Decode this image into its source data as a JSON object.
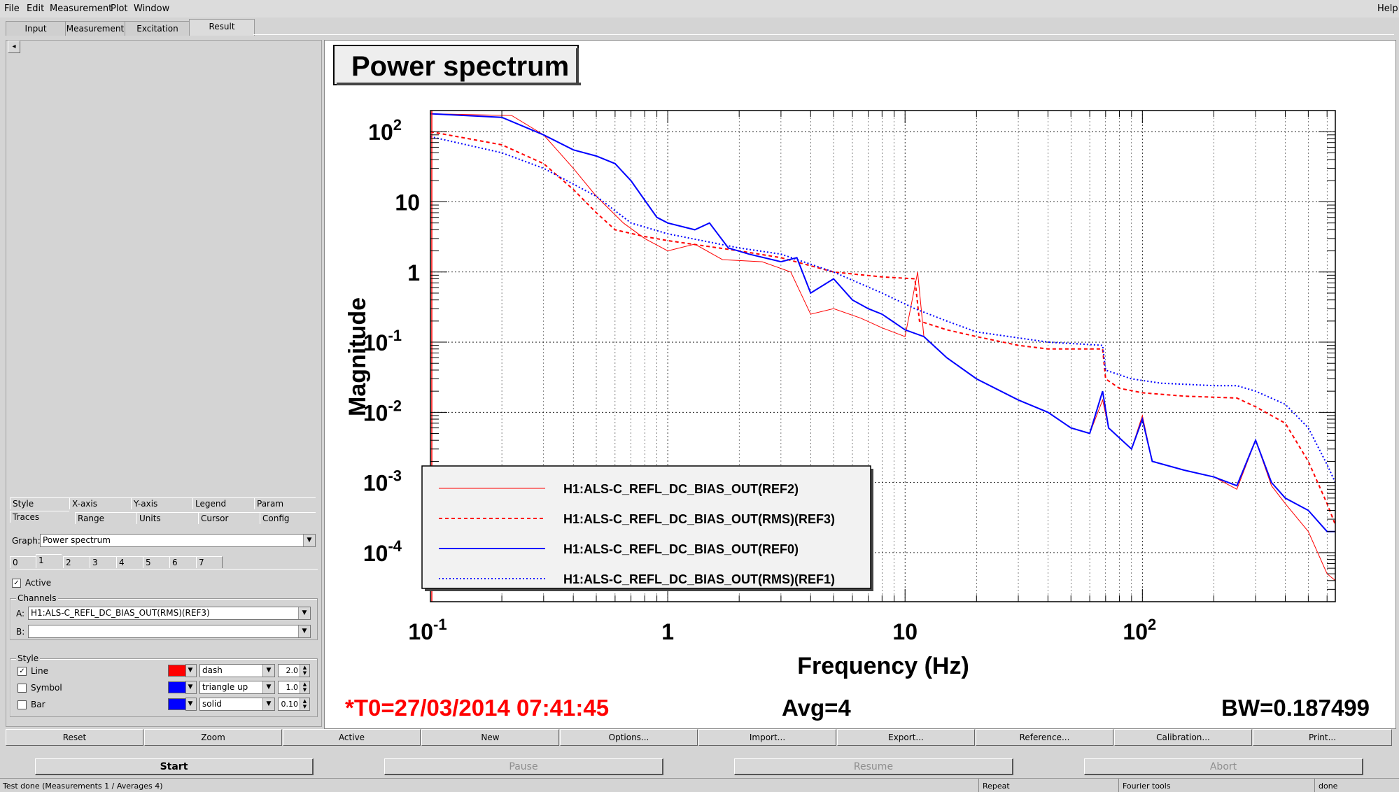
{
  "menu": {
    "file": "File",
    "edit": "Edit",
    "measurement": "Measurement",
    "plot": "Plot",
    "window": "Window",
    "help": "Help"
  },
  "main_tabs": [
    "Input",
    "Measurement",
    "Excitation",
    "Result"
  ],
  "left": {
    "collapse_glyph": "◂",
    "option_tabs_row1": [
      "Style",
      "X-axis",
      "Y-axis",
      "Legend",
      "Param"
    ],
    "option_tabs_row2": [
      "Traces",
      "Range",
      "Units",
      "Cursor",
      "Config"
    ],
    "graph_label": "Graph:",
    "graph_value": "Power spectrum",
    "trace_tabs": [
      "0",
      "1",
      "2",
      "3",
      "4",
      "5",
      "6",
      "7"
    ],
    "active_label": "Active",
    "channels_title": "Channels",
    "channel_a_label": "A:",
    "channel_a_value": "H1:ALS-C_REFL_DC_BIAS_OUT(RMS)(REF3)",
    "channel_b_label": "B:",
    "channel_b_value": "",
    "style_title": "Style",
    "line_label": "Line",
    "line_type": "dash",
    "line_width": "2.0",
    "symbol_label": "Symbol",
    "symbol_type": "triangle up",
    "symbol_size": "1.0",
    "bar_label": "Bar",
    "bar_type": "solid",
    "bar_width": "0.10",
    "line_color": "#ff0000",
    "symbol_color": "#0000ff",
    "bar_color": "#0000ff"
  },
  "plot": {
    "title": "Power spectrum",
    "ylabel": "Magnitude",
    "xlabel": "Frequency (Hz)",
    "t0": "*T0=27/03/2014 07:41:45",
    "avg": "Avg=4",
    "bw": "BW=0.187499"
  },
  "chart_data": {
    "type": "line",
    "title": "Power spectrum",
    "xlabel": "Frequency (Hz)",
    "ylabel": "Magnitude",
    "xscale": "log",
    "yscale": "log",
    "xlim": [
      0.1,
      650
    ],
    "ylim": [
      2e-05,
      200
    ],
    "grid": true,
    "legend_position": "bottom-left",
    "x_ticks": [
      {
        "base": "10",
        "exp": "-1"
      },
      {
        "base": "1",
        "exp": ""
      },
      {
        "base": "10",
        "exp": ""
      },
      {
        "base": "10",
        "exp": "2"
      }
    ],
    "y_ticks": [
      {
        "base": "10",
        "exp": "2"
      },
      {
        "base": "10",
        "exp": ""
      },
      {
        "base": "1",
        "exp": ""
      },
      {
        "base": "10",
        "exp": "-1"
      },
      {
        "base": "10",
        "exp": "-2"
      },
      {
        "base": "10",
        "exp": "-3"
      },
      {
        "base": "10",
        "exp": "-4"
      }
    ],
    "series": [
      {
        "name": "H1:ALS-C_REFL_DC_BIAS_OUT(REF2)",
        "color": "#ff0000",
        "style": "solid",
        "width": 1,
        "points": [
          [
            0.1,
            180
          ],
          [
            0.22,
            170
          ],
          [
            0.3,
            90
          ],
          [
            0.4,
            30
          ],
          [
            0.5,
            12
          ],
          [
            0.65,
            5
          ],
          [
            0.8,
            3
          ],
          [
            1.0,
            2.0
          ],
          [
            1.3,
            2.5
          ],
          [
            1.7,
            1.5
          ],
          [
            2.5,
            1.4
          ],
          [
            3.3,
            1.0
          ],
          [
            4.0,
            0.25
          ],
          [
            5.0,
            0.3
          ],
          [
            6.5,
            0.22
          ],
          [
            8,
            0.16
          ],
          [
            10,
            0.12
          ],
          [
            11.3,
            1.0
          ],
          [
            12,
            0.12
          ],
          [
            15,
            0.06
          ],
          [
            20,
            0.03
          ],
          [
            30,
            0.015
          ],
          [
            40,
            0.01
          ],
          [
            50,
            0.006
          ],
          [
            60,
            0.005
          ],
          [
            68,
            0.015
          ],
          [
            72,
            0.006
          ],
          [
            90,
            0.003
          ],
          [
            100,
            0.009
          ],
          [
            110,
            0.002
          ],
          [
            150,
            0.0015
          ],
          [
            200,
            0.0012
          ],
          [
            250,
            0.0008
          ],
          [
            300,
            0.004
          ],
          [
            350,
            0.0009
          ],
          [
            400,
            0.0005
          ],
          [
            500,
            0.0002
          ],
          [
            600,
            5e-05
          ],
          [
            650,
            4e-05
          ]
        ]
      },
      {
        "name": "H1:ALS-C_REFL_DC_BIAS_OUT(RMS)(REF3)",
        "color": "#ff0000",
        "style": "dash",
        "width": 2,
        "points": [
          [
            0.1,
            100
          ],
          [
            0.2,
            65
          ],
          [
            0.3,
            35
          ],
          [
            0.4,
            15
          ],
          [
            0.5,
            7
          ],
          [
            0.6,
            4
          ],
          [
            0.8,
            3.2
          ],
          [
            1,
            2.8
          ],
          [
            2,
            2.0
          ],
          [
            3,
            1.6
          ],
          [
            5,
            1.0
          ],
          [
            8,
            0.85
          ],
          [
            11,
            0.8
          ],
          [
            11.5,
            0.2
          ],
          [
            15,
            0.15
          ],
          [
            20,
            0.12
          ],
          [
            30,
            0.09
          ],
          [
            40,
            0.08
          ],
          [
            68,
            0.08
          ],
          [
            70,
            0.03
          ],
          [
            80,
            0.022
          ],
          [
            100,
            0.019
          ],
          [
            150,
            0.017
          ],
          [
            250,
            0.016
          ],
          [
            300,
            0.012
          ],
          [
            400,
            0.007
          ],
          [
            500,
            0.002
          ],
          [
            600,
            0.0005
          ],
          [
            650,
            0.00025
          ]
        ]
      },
      {
        "name": "H1:ALS-C_REFL_DC_BIAS_OUT(REF0)",
        "color": "#0000ff",
        "style": "solid",
        "width": 2,
        "points": [
          [
            0.1,
            180
          ],
          [
            0.2,
            160
          ],
          [
            0.3,
            90
          ],
          [
            0.4,
            55
          ],
          [
            0.5,
            45
          ],
          [
            0.6,
            35
          ],
          [
            0.7,
            20
          ],
          [
            0.9,
            6
          ],
          [
            1.0,
            5
          ],
          [
            1.3,
            4
          ],
          [
            1.5,
            5
          ],
          [
            1.8,
            2.2
          ],
          [
            2.2,
            1.8
          ],
          [
            3,
            1.4
          ],
          [
            3.5,
            1.6
          ],
          [
            4,
            0.5
          ],
          [
            5,
            0.8
          ],
          [
            6,
            0.4
          ],
          [
            7,
            0.3
          ],
          [
            8,
            0.25
          ],
          [
            10,
            0.15
          ],
          [
            12,
            0.12
          ],
          [
            15,
            0.06
          ],
          [
            20,
            0.03
          ],
          [
            30,
            0.015
          ],
          [
            40,
            0.01
          ],
          [
            50,
            0.006
          ],
          [
            60,
            0.005
          ],
          [
            68,
            0.02
          ],
          [
            72,
            0.006
          ],
          [
            90,
            0.003
          ],
          [
            100,
            0.008
          ],
          [
            110,
            0.002
          ],
          [
            150,
            0.0015
          ],
          [
            200,
            0.0012
          ],
          [
            250,
            0.0009
          ],
          [
            300,
            0.004
          ],
          [
            350,
            0.001
          ],
          [
            400,
            0.0006
          ],
          [
            500,
            0.0004
          ],
          [
            600,
            0.0002
          ],
          [
            650,
            0.0002
          ]
        ]
      },
      {
        "name": "H1:ALS-C_REFL_DC_BIAS_OUT(RMS)(REF1)",
        "color": "#0000ff",
        "style": "dot",
        "width": 2,
        "points": [
          [
            0.1,
            85
          ],
          [
            0.2,
            50
          ],
          [
            0.3,
            30
          ],
          [
            0.5,
            12
          ],
          [
            0.7,
            5
          ],
          [
            1,
            3.5
          ],
          [
            2,
            2.2
          ],
          [
            3,
            1.8
          ],
          [
            5,
            1.0
          ],
          [
            8,
            0.5
          ],
          [
            11,
            0.3
          ],
          [
            15,
            0.2
          ],
          [
            20,
            0.14
          ],
          [
            40,
            0.1
          ],
          [
            68,
            0.09
          ],
          [
            70,
            0.04
          ],
          [
            90,
            0.03
          ],
          [
            120,
            0.026
          ],
          [
            200,
            0.024
          ],
          [
            250,
            0.024
          ],
          [
            300,
            0.02
          ],
          [
            400,
            0.013
          ],
          [
            500,
            0.006
          ],
          [
            600,
            0.0018
          ],
          [
            650,
            0.001
          ]
        ]
      }
    ]
  },
  "buttons_row1": [
    "Reset",
    "Zoom",
    "Active",
    "New",
    "Options...",
    "Import...",
    "Export...",
    "Reference...",
    "Calibration...",
    "Print..."
  ],
  "buttons_row2": [
    {
      "label": "Start",
      "enabled": true
    },
    {
      "label": "Pause",
      "enabled": false
    },
    {
      "label": "Resume",
      "enabled": false
    },
    {
      "label": "Abort",
      "enabled": false
    }
  ],
  "status": {
    "message": "Test done (Measurements 1 / Averages 4)",
    "repeat": "Repeat",
    "tools": "Fourier tools",
    "state": "done"
  }
}
